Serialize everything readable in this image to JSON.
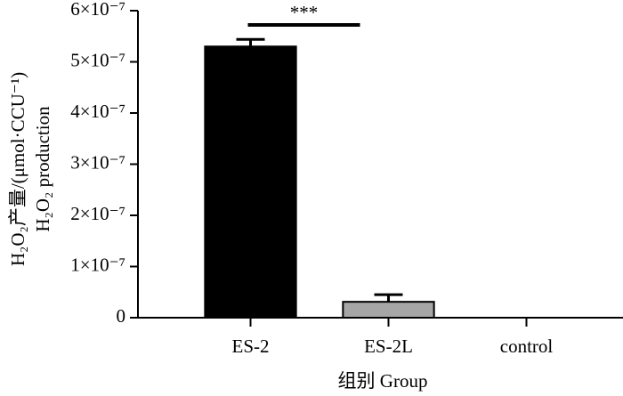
{
  "chart_data": {
    "type": "bar",
    "y_label_lines": [
      "H₂O₂产量/(μmol·CCU⁻¹)",
      "H₂O₂ production"
    ],
    "x_label": "组别 Group",
    "categories": [
      "ES-2",
      "ES-2L",
      "control"
    ],
    "values": [
      5.3e-07,
      3.1e-08,
      0
    ],
    "errors": [
      1.4e-08,
      1.4e-08,
      0
    ],
    "colors": [
      "#000000",
      "#a6a6a6",
      "#ffffff"
    ],
    "annotation": "***",
    "ylim": [
      0,
      6e-07
    ],
    "yticks": [
      0,
      {
        "value": 1e-07,
        "label": "1×10⁻⁷"
      },
      {
        "value": 2e-07,
        "label": "2×10⁻⁷"
      },
      {
        "value": 3e-07,
        "label": "3×10⁻⁷"
      },
      {
        "value": 4e-07,
        "label": "4×10⁻⁷"
      },
      {
        "value": 5e-07,
        "label": "5×10⁻⁷"
      },
      {
        "value": 6e-07,
        "label": "6×10⁻⁷"
      }
    ],
    "grid": false
  }
}
